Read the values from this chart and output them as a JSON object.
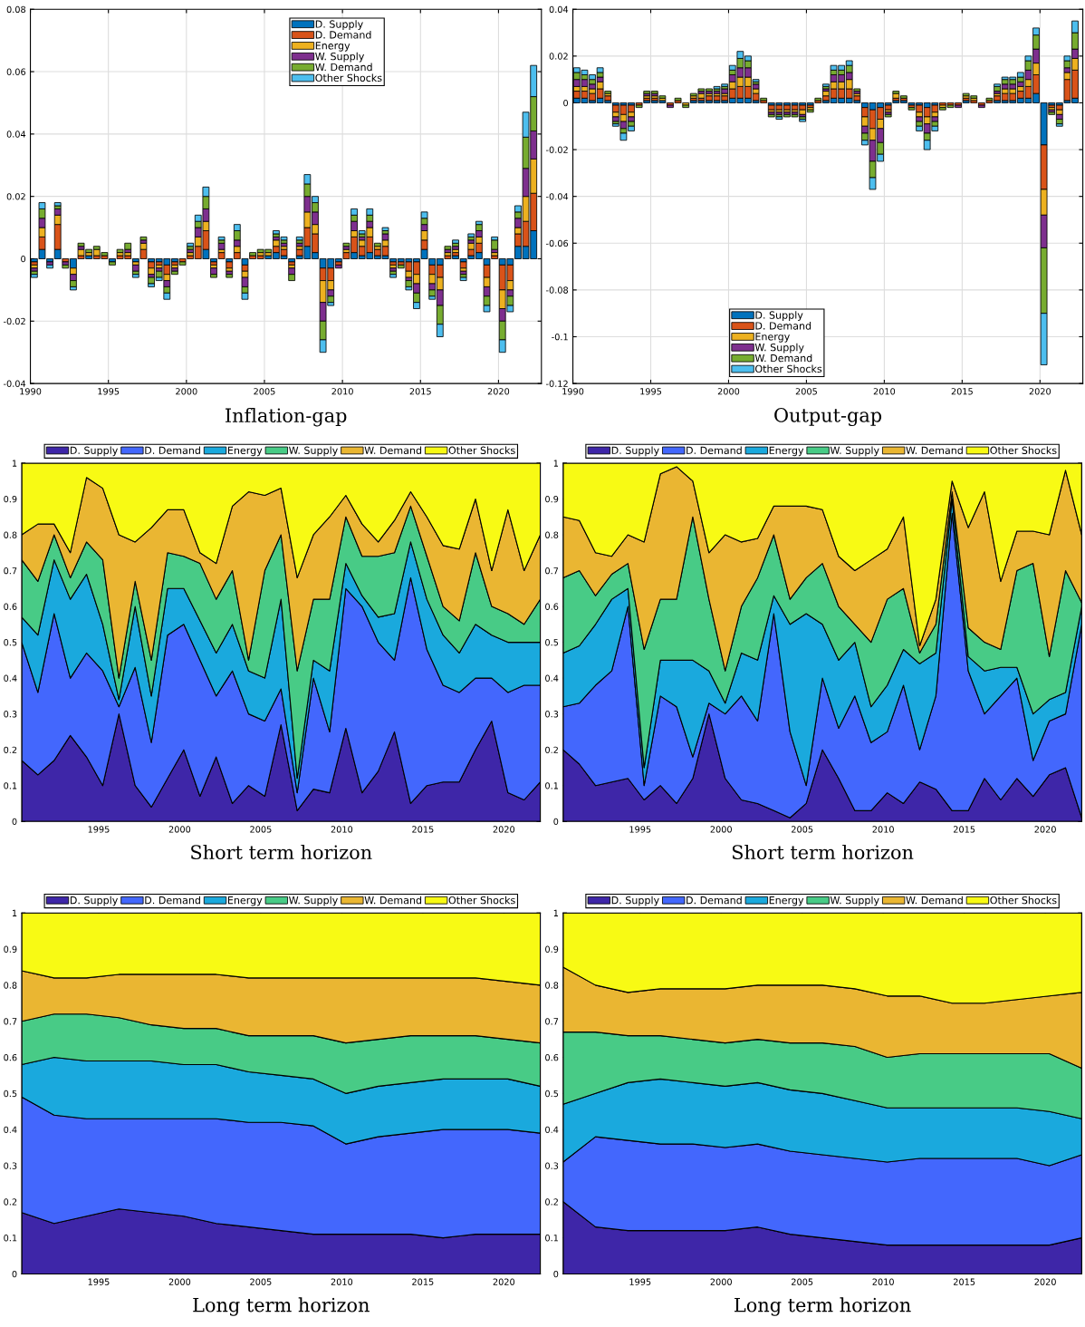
{
  "chart_data": [
    {
      "type": "bar",
      "stacked": true,
      "title": "Inflation-gap",
      "grid": true,
      "legend": "top",
      "x": [
        1990.25,
        1990.75,
        1991.25,
        1991.75,
        1992.25,
        1992.75,
        1993.25,
        1993.75,
        1994.25,
        1994.75,
        1995.25,
        1995.75,
        1996.25,
        1996.75,
        1997.25,
        1997.75,
        1998.25,
        1998.75,
        1999.25,
        1999.75,
        2000.25,
        2000.75,
        2001.25,
        2001.75,
        2002.25,
        2002.75,
        2003.25,
        2003.75,
        2004.25,
        2004.75,
        2005.25,
        2005.75,
        2006.25,
        2006.75,
        2007.25,
        2007.75,
        2008.25,
        2008.75,
        2009.25,
        2009.75,
        2010.25,
        2010.75,
        2011.25,
        2011.75,
        2012.25,
        2012.75,
        2013.25,
        2013.75,
        2014.25,
        2014.75,
        2015.25,
        2015.75,
        2016.25,
        2016.75,
        2017.25,
        2017.75,
        2018.25,
        2018.75,
        2019.25,
        2019.75,
        2020.25,
        2020.75,
        2021.25,
        2021.75,
        2022.25
      ],
      "xlim": [
        1990,
        2022.75
      ],
      "xticks": [
        1990,
        1995,
        2000,
        2005,
        2010,
        2015,
        2020
      ],
      "ylim": [
        -0.04,
        0.08
      ],
      "yticks": [
        -0.04,
        -0.02,
        0,
        0.02,
        0.04,
        0.06,
        0.08
      ],
      "series": [
        {
          "name": "D. Supply",
          "color": "#0072bd",
          "values": [
            -0.001,
            0.003,
            -0.001,
            0.003,
            0,
            -0.003,
            0,
            0.001,
            0,
            0,
            -0.001,
            0,
            0,
            -0.001,
            0,
            -0.001,
            -0.001,
            -0.002,
            -0.001,
            0,
            0,
            0,
            0.003,
            -0.001,
            0,
            -0.001,
            0,
            -0.002,
            0,
            0,
            0.001,
            0.002,
            0.001,
            -0.001,
            0.001,
            0.004,
            0.002,
            -0.003,
            -0.003,
            -0.001,
            0,
            0.002,
            0.001,
            0.002,
            0.001,
            0.001,
            -0.001,
            -0.001,
            -0.001,
            -0.001,
            0.003,
            -0.002,
            -0.002,
            0,
            0.001,
            -0.001,
            0.001,
            0.002,
            -0.002,
            0,
            -0.002,
            -0.002,
            0.004,
            0.004,
            0.009
          ]
        },
        {
          "name": "D. Demand",
          "color": "#d95319",
          "values": [
            -0.001,
            0.004,
            0,
            0.008,
            -0.001,
            0,
            0.001,
            0,
            0.001,
            0.001,
            0,
            0.001,
            0.001,
            0,
            0.003,
            -0.002,
            -0.001,
            -0.003,
            -0.001,
            -0.001,
            0.001,
            0.004,
            0.006,
            -0.001,
            0.002,
            -0.002,
            0.002,
            -0.002,
            0.001,
            0.001,
            0,
            0.002,
            0.002,
            -0.001,
            0.002,
            0.006,
            0.006,
            -0.004,
            -0.004,
            -0.001,
            0.002,
            0.005,
            0.003,
            0.005,
            0.002,
            0.003,
            -0.001,
            -0.001,
            -0.003,
            -0.004,
            0.003,
            -0.003,
            -0.004,
            0.001,
            0.001,
            -0.002,
            0.002,
            0.003,
            -0.004,
            0.001,
            -0.008,
            -0.005,
            0.004,
            0.008,
            0.012
          ]
        },
        {
          "name": "Energy",
          "color": "#edb120",
          "values": [
            -0.001,
            0.003,
            0,
            0.003,
            0,
            -0.002,
            0.002,
            0.001,
            0.002,
            0,
            0,
            0.001,
            0.001,
            -0.001,
            0.002,
            -0.002,
            -0.001,
            -0.002,
            -0.001,
            0,
            0.001,
            0.003,
            0.003,
            -0.001,
            0.001,
            -0.001,
            0.002,
            -0.002,
            0,
            0.001,
            0.001,
            0.002,
            0.001,
            -0.001,
            0.001,
            0.005,
            0.003,
            -0.007,
            -0.003,
            0,
            0.001,
            0.002,
            0.002,
            0.003,
            0.001,
            0.002,
            -0.001,
            0,
            -0.002,
            -0.003,
            0.003,
            -0.003,
            -0.004,
            0.001,
            0.001,
            -0.001,
            0.002,
            0.002,
            -0.003,
            0.001,
            -0.006,
            -0.003,
            0.002,
            0.008,
            0.011
          ]
        },
        {
          "name": "W. Supply",
          "color": "#7e2f8e",
          "values": [
            -0.001,
            0.003,
            -0.001,
            0.002,
            -0.001,
            -0.002,
            0.001,
            0,
            0,
            0,
            0,
            0,
            0.001,
            -0.002,
            0.001,
            -0.001,
            -0.001,
            -0.002,
            -0.001,
            0,
            0.001,
            0.003,
            0.004,
            -0.002,
            0.002,
            -0.001,
            0.002,
            -0.003,
            0,
            0,
            0,
            0.001,
            0.001,
            -0.002,
            0.001,
            0.005,
            0.004,
            -0.006,
            -0.002,
            -0.001,
            0.001,
            0.003,
            0.001,
            0.002,
            0,
            0.002,
            -0.001,
            0,
            -0.001,
            -0.003,
            0.002,
            -0.002,
            -0.005,
            0.001,
            0.001,
            -0.001,
            0.001,
            0.002,
            -0.003,
            0.001,
            -0.004,
            -0.002,
            0.003,
            0.009,
            0.009
          ]
        },
        {
          "name": "W. Demand",
          "color": "#77ac30",
          "values": [
            -0.001,
            0.003,
            0,
            0.001,
            -0.001,
            -0.002,
            0.001,
            0.001,
            0.001,
            0.001,
            -0.001,
            0.001,
            0.002,
            -0.001,
            0.001,
            -0.002,
            -0.002,
            -0.002,
            -0.001,
            -0.001,
            0.001,
            0.002,
            0.004,
            -0.001,
            0.001,
            -0.001,
            0.003,
            -0.002,
            0.001,
            0.001,
            0.001,
            0.001,
            0.001,
            -0.002,
            0.001,
            0.004,
            0.003,
            -0.006,
            -0.002,
            0,
            0.001,
            0.002,
            0.001,
            0.002,
            0.001,
            0.001,
            -0.001,
            -0.001,
            -0.002,
            -0.003,
            0.002,
            -0.002,
            -0.006,
            0.001,
            0.001,
            -0.001,
            0.001,
            0.002,
            -0.003,
            0.003,
            -0.006,
            -0.003,
            0.002,
            0.01,
            0.011
          ]
        },
        {
          "name": "Other Shocks",
          "color": "#4dbeee",
          "values": [
            -0.001,
            0.002,
            -0.001,
            0.001,
            0,
            -0.001,
            0,
            0,
            0,
            0,
            0,
            0,
            0,
            -0.001,
            0,
            -0.001,
            -0.001,
            -0.002,
            0,
            0,
            0.001,
            0.002,
            0.003,
            0,
            0.001,
            0,
            0.002,
            -0.002,
            0,
            0,
            0,
            0.001,
            0.001,
            0,
            0.001,
            0.003,
            0.002,
            -0.004,
            -0.001,
            0,
            0,
            0.002,
            0.001,
            0.002,
            0,
            0.001,
            -0.001,
            0,
            -0.001,
            -0.002,
            0.002,
            -0.001,
            -0.004,
            0,
            0.001,
            -0.001,
            0.001,
            0.001,
            -0.002,
            0.001,
            -0.004,
            -0.002,
            0.002,
            0.008,
            0.01
          ]
        }
      ]
    },
    {
      "type": "bar",
      "stacked": true,
      "title": "Output-gap",
      "grid": true,
      "legend": "bottom",
      "x": [
        1990.25,
        1990.75,
        1991.25,
        1991.75,
        1992.25,
        1992.75,
        1993.25,
        1993.75,
        1994.25,
        1994.75,
        1995.25,
        1995.75,
        1996.25,
        1996.75,
        1997.25,
        1997.75,
        1998.25,
        1998.75,
        1999.25,
        1999.75,
        2000.25,
        2000.75,
        2001.25,
        2001.75,
        2002.25,
        2002.75,
        2003.25,
        2003.75,
        2004.25,
        2004.75,
        2005.25,
        2005.75,
        2006.25,
        2006.75,
        2007.25,
        2007.75,
        2008.25,
        2008.75,
        2009.25,
        2009.75,
        2010.25,
        2010.75,
        2011.25,
        2011.75,
        2012.25,
        2012.75,
        2013.25,
        2013.75,
        2014.25,
        2014.75,
        2015.25,
        2015.75,
        2016.25,
        2016.75,
        2017.25,
        2017.75,
        2018.25,
        2018.75,
        2019.25,
        2019.75,
        2020.25,
        2020.75,
        2021.25,
        2021.75,
        2022.25
      ],
      "xlim": [
        1990,
        2022.75
      ],
      "xticks": [
        1990,
        1995,
        2000,
        2005,
        2010,
        2015,
        2020
      ],
      "ylim": [
        -0.12,
        0.04
      ],
      "yticks": [
        -0.12,
        -0.1,
        -0.08,
        -0.06,
        -0.04,
        -0.02,
        0,
        0.02,
        0.04
      ],
      "series": [
        {
          "name": "D. Supply",
          "color": "#0072bd",
          "values": [
            0.002,
            0.002,
            0.001,
            0.002,
            0.001,
            -0.001,
            -0.001,
            -0.001,
            0,
            0.001,
            0.001,
            0.001,
            0,
            0,
            0,
            0.001,
            0.001,
            0.001,
            0.001,
            0.001,
            0.002,
            0.002,
            0.002,
            0.001,
            0,
            -0.001,
            -0.001,
            -0.001,
            -0.001,
            -0.001,
            -0.001,
            0,
            0.001,
            0.002,
            0.002,
            0.002,
            0.001,
            -0.002,
            -0.003,
            -0.002,
            -0.001,
            0.001,
            0.001,
            -0.001,
            -0.001,
            -0.002,
            -0.001,
            0,
            0,
            0,
            0.001,
            0,
            0,
            0,
            0.001,
            0.001,
            0.001,
            0.002,
            0.002,
            0.004,
            -0.018,
            -0.001,
            -0.001,
            0.001,
            0.002
          ]
        },
        {
          "name": "D. Demand",
          "color": "#d95319",
          "values": [
            0.003,
            0.003,
            0.003,
            0.004,
            0.002,
            -0.003,
            -0.004,
            -0.003,
            -0.001,
            0.001,
            0.001,
            0,
            -0.001,
            0.001,
            0,
            0.001,
            0.001,
            0.002,
            0.002,
            0.002,
            0.004,
            0.005,
            0.005,
            0.003,
            0.001,
            -0.002,
            -0.002,
            -0.002,
            -0.002,
            -0.002,
            -0.001,
            0.001,
            0.002,
            0.004,
            0.004,
            0.004,
            0.002,
            -0.004,
            -0.008,
            -0.005,
            -0.002,
            0.001,
            0.001,
            -0.001,
            -0.003,
            -0.004,
            -0.003,
            -0.001,
            -0.001,
            -0.001,
            0.001,
            0.001,
            -0.001,
            0.001,
            0.002,
            0.003,
            0.003,
            0.003,
            0.005,
            0.008,
            -0.019,
            -0.001,
            -0.002,
            0.009,
            0.012
          ]
        },
        {
          "name": "Energy",
          "color": "#edb120",
          "values": [
            0.002,
            0.002,
            0.002,
            0.003,
            0.001,
            -0.002,
            -0.003,
            -0.002,
            0,
            0.001,
            0.001,
            0.001,
            0,
            0,
            -0.001,
            0.001,
            0.002,
            0.001,
            0.001,
            0.001,
            0.003,
            0.004,
            0.004,
            0.002,
            0,
            -0.001,
            -0.001,
            -0.001,
            -0.001,
            -0.002,
            -0.001,
            0,
            0.002,
            0.003,
            0.003,
            0.004,
            0.001,
            -0.004,
            -0.005,
            -0.004,
            -0.001,
            0.002,
            0,
            0,
            -0.002,
            -0.003,
            -0.002,
            -0.001,
            0,
            0,
            0.001,
            0.001,
            0,
            0,
            0.001,
            0.002,
            0.002,
            0.002,
            0.003,
            0.005,
            -0.011,
            -0.001,
            -0.002,
            0.003,
            0.005
          ]
        },
        {
          "name": "W. Supply",
          "color": "#7e2f8e",
          "values": [
            0.003,
            0.003,
            0.002,
            0.002,
            0,
            -0.002,
            -0.003,
            -0.002,
            0,
            0.001,
            0.001,
            0,
            -0.001,
            0,
            0,
            0,
            0.001,
            0.001,
            0.001,
            0.002,
            0.003,
            0.004,
            0.004,
            0.002,
            0,
            -0.001,
            -0.001,
            -0.001,
            -0.001,
            -0.001,
            0,
            0,
            0.001,
            0.003,
            0.003,
            0.003,
            0.001,
            -0.003,
            -0.009,
            -0.006,
            -0.001,
            0,
            0,
            0,
            -0.002,
            -0.004,
            -0.002,
            0,
            0,
            -0.001,
            0,
            0,
            -0.001,
            0,
            0.001,
            0.002,
            0.002,
            0.002,
            0.004,
            0.006,
            -0.014,
            -0.001,
            -0.002,
            0.002,
            0.004
          ]
        },
        {
          "name": "W. Demand",
          "color": "#77ac30",
          "values": [
            0.003,
            0.002,
            0.002,
            0.002,
            0.001,
            -0.001,
            -0.002,
            -0.002,
            -0.001,
            0.001,
            0.001,
            0.001,
            0,
            0.001,
            -0.001,
            0.001,
            0.001,
            0.001,
            0.001,
            0.001,
            0.002,
            0.004,
            0.003,
            0.001,
            0.001,
            -0.001,
            -0.001,
            -0.001,
            -0.001,
            -0.001,
            -0.001,
            0.001,
            0.001,
            0.002,
            0.002,
            0.003,
            0.001,
            -0.003,
            -0.007,
            -0.005,
            -0.001,
            0.001,
            0.001,
            -0.001,
            -0.002,
            -0.003,
            -0.002,
            -0.001,
            -0.001,
            0,
            0.001,
            0.001,
            0,
            0.001,
            0.002,
            0.002,
            0.002,
            0.002,
            0.004,
            0.006,
            -0.028,
            -0.001,
            -0.002,
            0.003,
            0.007
          ]
        },
        {
          "name": "Other Shocks",
          "color": "#4dbeee",
          "values": [
            0.002,
            0.002,
            0.002,
            0.002,
            0,
            -0.001,
            -0.003,
            -0.002,
            0,
            0,
            0,
            0,
            0,
            0,
            0,
            0,
            0,
            0,
            0.001,
            0.001,
            0.002,
            0.003,
            0.002,
            0.001,
            0,
            0,
            -0.001,
            0,
            0,
            -0.001,
            0,
            0,
            0.001,
            0.002,
            0.002,
            0.002,
            0,
            -0.002,
            -0.005,
            -0.003,
            0,
            0,
            0,
            0,
            -0.002,
            -0.004,
            -0.002,
            0,
            0,
            0,
            0,
            0,
            0,
            0,
            0.001,
            0.001,
            0.001,
            0.002,
            0.002,
            0.003,
            -0.022,
            0,
            -0.001,
            0.002,
            0.005
          ]
        }
      ]
    },
    {
      "type": "area",
      "stacked": true,
      "title": "Short term horizon",
      "legend": "top",
      "x": [
        1990.25,
        1991.25,
        1992.25,
        1993.25,
        1994.25,
        1995.25,
        1996.25,
        1997.25,
        1998.25,
        1999.25,
        2000.25,
        2001.25,
        2002.25,
        2003.25,
        2004.25,
        2005.25,
        2006.25,
        2007.25,
        2008.25,
        2009.25,
        2010.25,
        2011.25,
        2012.25,
        2013.25,
        2014.25,
        2015.25,
        2016.25,
        2017.25,
        2018.25,
        2019.25,
        2020.25,
        2021.25,
        2022.25
      ],
      "xlim": [
        1990.25,
        2022.25
      ],
      "xticks": [
        1995,
        2000,
        2005,
        2010,
        2015,
        2020
      ],
      "ylim": [
        0,
        1
      ],
      "yticks": [
        0,
        0.1,
        0.2,
        0.3,
        0.4,
        0.5,
        0.6,
        0.7,
        0.8,
        0.9,
        1
      ],
      "series": [
        {
          "name": "D. Supply",
          "color": "#3e26a8",
          "values": [
            0.17,
            0.13,
            0.17,
            0.24,
            0.18,
            0.1,
            0.3,
            0.1,
            0.04,
            0.12,
            0.2,
            0.07,
            0.18,
            0.05,
            0.1,
            0.07,
            0.27,
            0.03,
            0.09,
            0.08,
            0.26,
            0.08,
            0.14,
            0.25,
            0.05,
            0.1,
            0.11,
            0.11,
            0.2,
            0.28,
            0.08,
            0.06,
            0.11
          ]
        },
        {
          "name": "D. Demand",
          "color": "#4367fd",
          "values": [
            0.33,
            0.23,
            0.41,
            0.16,
            0.29,
            0.32,
            0.02,
            0.33,
            0.18,
            0.4,
            0.35,
            0.38,
            0.17,
            0.37,
            0.2,
            0.21,
            0.1,
            0.05,
            0.31,
            0.17,
            0.39,
            0.52,
            0.36,
            0.2,
            0.63,
            0.38,
            0.27,
            0.25,
            0.2,
            0.12,
            0.28,
            0.32,
            0.27
          ]
        },
        {
          "name": "Energy",
          "color": "#1aa9dd",
          "values": [
            0.07,
            0.16,
            0.15,
            0.22,
            0.22,
            0.13,
            0.02,
            0.17,
            0.13,
            0.13,
            0.1,
            0.11,
            0.12,
            0.13,
            0.12,
            0.12,
            0.25,
            0.04,
            0.05,
            0.17,
            0.07,
            0.03,
            0.07,
            0.13,
            0.1,
            0.14,
            0.14,
            0.11,
            0.15,
            0.12,
            0.14,
            0.12,
            0.12
          ]
        },
        {
          "name": "W. Supply",
          "color": "#48cb86",
          "values": [
            0.16,
            0.15,
            0.07,
            0.06,
            0.09,
            0.18,
            0.06,
            0.07,
            0.1,
            0.1,
            0.09,
            0.16,
            0.15,
            0.15,
            0.03,
            0.3,
            0.18,
            0.3,
            0.17,
            0.2,
            0.13,
            0.11,
            0.17,
            0.17,
            0.1,
            0.12,
            0.08,
            0.09,
            0.2,
            0.08,
            0.08,
            0.05,
            0.12
          ]
        },
        {
          "name": "W. Demand",
          "color": "#eab632",
          "values": [
            0.07,
            0.16,
            0.03,
            0.07,
            0.18,
            0.2,
            0.4,
            0.11,
            0.37,
            0.12,
            0.13,
            0.03,
            0.1,
            0.18,
            0.47,
            0.21,
            0.13,
            0.26,
            0.18,
            0.23,
            0.06,
            0.09,
            0.04,
            0.09,
            0.04,
            0.11,
            0.17,
            0.2,
            0.15,
            0.1,
            0.29,
            0.15,
            0.18
          ]
        },
        {
          "name": "Other Shocks",
          "color": "#f8fa14",
          "values": [
            0.2,
            0.17,
            0.17,
            0.25,
            0.04,
            0.07,
            0.2,
            0.22,
            0.18,
            0.13,
            0.13,
            0.25,
            0.28,
            0.12,
            0.08,
            0.09,
            0.07,
            0.32,
            0.2,
            0.15,
            0.09,
            0.17,
            0.22,
            0.16,
            0.08,
            0.15,
            0.23,
            0.24,
            0.1,
            0.3,
            0.13,
            0.3,
            0.2
          ]
        }
      ]
    },
    {
      "type": "area",
      "stacked": true,
      "title": "Short term horizon",
      "legend": "top",
      "x": [
        1990.25,
        1991.25,
        1992.25,
        1993.25,
        1994.25,
        1995.25,
        1996.25,
        1997.25,
        1998.25,
        1999.25,
        2000.25,
        2001.25,
        2002.25,
        2003.25,
        2004.25,
        2005.25,
        2006.25,
        2007.25,
        2008.25,
        2009.25,
        2010.25,
        2011.25,
        2012.25,
        2013.25,
        2014.25,
        2015.25,
        2016.25,
        2017.25,
        2018.25,
        2019.25,
        2020.25,
        2021.25,
        2022.25
      ],
      "xlim": [
        1990.25,
        2022.25
      ],
      "xticks": [
        1995,
        2000,
        2005,
        2010,
        2015,
        2020
      ],
      "ylim": [
        0,
        1
      ],
      "yticks": [
        0,
        0.1,
        0.2,
        0.3,
        0.4,
        0.5,
        0.6,
        0.7,
        0.8,
        0.9,
        1
      ],
      "series": [
        {
          "name": "D. Supply",
          "color": "#3e26a8",
          "values": [
            0.2,
            0.16,
            0.1,
            0.11,
            0.12,
            0.06,
            0.1,
            0.05,
            0.12,
            0.3,
            0.12,
            0.06,
            0.05,
            0.03,
            0.01,
            0.05,
            0.2,
            0.12,
            0.03,
            0.03,
            0.08,
            0.05,
            0.11,
            0.09,
            0.03,
            0.03,
            0.12,
            0.06,
            0.12,
            0.07,
            0.13,
            0.15,
            0.01
          ]
        },
        {
          "name": "D. Demand",
          "color": "#4367fd",
          "values": [
            0.12,
            0.17,
            0.28,
            0.31,
            0.48,
            0.04,
            0.25,
            0.27,
            0.06,
            0.03,
            0.18,
            0.29,
            0.23,
            0.55,
            0.24,
            0.05,
            0.2,
            0.14,
            0.32,
            0.19,
            0.17,
            0.33,
            0.09,
            0.26,
            0.83,
            0.39,
            0.18,
            0.29,
            0.28,
            0.1,
            0.15,
            0.15,
            0.54
          ]
        },
        {
          "name": "Energy",
          "color": "#1aa9dd",
          "values": [
            0.15,
            0.16,
            0.17,
            0.2,
            0.05,
            0.05,
            0.1,
            0.13,
            0.27,
            0.09,
            0.03,
            0.12,
            0.17,
            0.05,
            0.3,
            0.48,
            0.15,
            0.19,
            0.15,
            0.1,
            0.13,
            0.1,
            0.24,
            0.12,
            0.04,
            0.04,
            0.12,
            0.08,
            0.03,
            0.13,
            0.06,
            0.06,
            0.05
          ]
        },
        {
          "name": "W. Supply",
          "color": "#48cb86",
          "values": [
            0.21,
            0.21,
            0.08,
            0.07,
            0.07,
            0.33,
            0.17,
            0.17,
            0.4,
            0.2,
            0.09,
            0.13,
            0.23,
            0.17,
            0.07,
            0.1,
            0.17,
            0.15,
            0.05,
            0.18,
            0.24,
            0.17,
            0.03,
            0.08,
            0.02,
            0.08,
            0.08,
            0.05,
            0.27,
            0.42,
            0.12,
            0.34,
            0.01
          ]
        },
        {
          "name": "W. Demand",
          "color": "#eab632",
          "values": [
            0.17,
            0.14,
            0.12,
            0.05,
            0.08,
            0.3,
            0.35,
            0.37,
            0.1,
            0.13,
            0.38,
            0.18,
            0.11,
            0.08,
            0.26,
            0.2,
            0.15,
            0.14,
            0.15,
            0.23,
            0.14,
            0.2,
            0.02,
            0.07,
            0.03,
            0.28,
            0.42,
            0.19,
            0.11,
            0.09,
            0.34,
            0.28,
            0.19
          ]
        },
        {
          "name": "Other Shocks",
          "color": "#f8fa14",
          "values": [
            0.15,
            0.16,
            0.25,
            0.26,
            0.2,
            0.22,
            0.03,
            0.01,
            0.05,
            0.25,
            0.2,
            0.22,
            0.21,
            0.12,
            0.12,
            0.12,
            0.13,
            0.26,
            0.3,
            0.27,
            0.24,
            0.15,
            0.51,
            0.38,
            0.05,
            0.18,
            0.08,
            0.33,
            0.19,
            0.19,
            0.2,
            0.02,
            0.2
          ]
        }
      ]
    },
    {
      "type": "area",
      "stacked": true,
      "title": "Long term horizon",
      "legend": "top",
      "x": [
        1990.25,
        1992.25,
        1994.25,
        1996.25,
        1998.25,
        2000.25,
        2002.25,
        2004.25,
        2006.25,
        2008.25,
        2010.25,
        2012.25,
        2014.25,
        2016.25,
        2018.25,
        2020.25,
        2022.25
      ],
      "xlim": [
        1990.25,
        2022.25
      ],
      "xticks": [
        1995,
        2000,
        2005,
        2010,
        2015,
        2020
      ],
      "ylim": [
        0,
        1
      ],
      "yticks": [
        0,
        0.1,
        0.2,
        0.3,
        0.4,
        0.5,
        0.6,
        0.7,
        0.8,
        0.9,
        1
      ],
      "series": [
        {
          "name": "D. Supply",
          "color": "#3e26a8",
          "values": [
            0.17,
            0.14,
            0.16,
            0.18,
            0.17,
            0.16,
            0.14,
            0.13,
            0.12,
            0.11,
            0.11,
            0.11,
            0.11,
            0.1,
            0.11,
            0.11,
            0.11
          ]
        },
        {
          "name": "D. Demand",
          "color": "#4367fd",
          "values": [
            0.32,
            0.3,
            0.27,
            0.25,
            0.26,
            0.27,
            0.29,
            0.29,
            0.3,
            0.3,
            0.25,
            0.27,
            0.28,
            0.3,
            0.29,
            0.29,
            0.28
          ]
        },
        {
          "name": "Energy",
          "color": "#1aa9dd",
          "values": [
            0.09,
            0.16,
            0.16,
            0.16,
            0.16,
            0.15,
            0.15,
            0.14,
            0.13,
            0.13,
            0.14,
            0.14,
            0.14,
            0.14,
            0.14,
            0.14,
            0.13
          ]
        },
        {
          "name": "W. Supply",
          "color": "#48cb86",
          "values": [
            0.12,
            0.12,
            0.13,
            0.12,
            0.1,
            0.1,
            0.1,
            0.1,
            0.11,
            0.12,
            0.14,
            0.13,
            0.13,
            0.12,
            0.12,
            0.11,
            0.12
          ]
        },
        {
          "name": "W. Demand",
          "color": "#eab632",
          "values": [
            0.14,
            0.1,
            0.1,
            0.12,
            0.14,
            0.15,
            0.15,
            0.16,
            0.16,
            0.16,
            0.18,
            0.17,
            0.16,
            0.16,
            0.16,
            0.16,
            0.16
          ]
        },
        {
          "name": "Other Shocks",
          "color": "#f8fa14",
          "values": [
            0.16,
            0.18,
            0.18,
            0.17,
            0.17,
            0.17,
            0.17,
            0.18,
            0.18,
            0.18,
            0.18,
            0.18,
            0.18,
            0.18,
            0.18,
            0.19,
            0.2
          ]
        }
      ]
    },
    {
      "type": "area",
      "stacked": true,
      "title": "Long term horizon",
      "legend": "top",
      "x": [
        1990.25,
        1992.25,
        1994.25,
        1996.25,
        1998.25,
        2000.25,
        2002.25,
        2004.25,
        2006.25,
        2008.25,
        2010.25,
        2012.25,
        2014.25,
        2016.25,
        2018.25,
        2020.25,
        2022.25
      ],
      "xlim": [
        1990.25,
        2022.25
      ],
      "xticks": [
        1995,
        2000,
        2005,
        2010,
        2015,
        2020
      ],
      "ylim": [
        0,
        1
      ],
      "yticks": [
        0,
        0.1,
        0.2,
        0.3,
        0.4,
        0.5,
        0.6,
        0.7,
        0.8,
        0.9,
        1
      ],
      "series": [
        {
          "name": "D. Supply",
          "color": "#3e26a8",
          "values": [
            0.2,
            0.13,
            0.12,
            0.12,
            0.12,
            0.12,
            0.13,
            0.11,
            0.1,
            0.09,
            0.08,
            0.08,
            0.08,
            0.08,
            0.08,
            0.08,
            0.1
          ]
        },
        {
          "name": "D. Demand",
          "color": "#4367fd",
          "values": [
            0.11,
            0.25,
            0.25,
            0.24,
            0.24,
            0.23,
            0.23,
            0.23,
            0.23,
            0.23,
            0.23,
            0.24,
            0.24,
            0.24,
            0.24,
            0.22,
            0.23
          ]
        },
        {
          "name": "Energy",
          "color": "#1aa9dd",
          "values": [
            0.16,
            0.12,
            0.16,
            0.18,
            0.17,
            0.17,
            0.17,
            0.17,
            0.17,
            0.16,
            0.15,
            0.14,
            0.14,
            0.14,
            0.14,
            0.15,
            0.1
          ]
        },
        {
          "name": "W. Supply",
          "color": "#48cb86",
          "values": [
            0.2,
            0.17,
            0.13,
            0.12,
            0.12,
            0.12,
            0.12,
            0.13,
            0.14,
            0.15,
            0.14,
            0.15,
            0.15,
            0.15,
            0.15,
            0.16,
            0.14
          ]
        },
        {
          "name": "W. Demand",
          "color": "#eab632",
          "values": [
            0.18,
            0.13,
            0.12,
            0.13,
            0.14,
            0.15,
            0.15,
            0.16,
            0.16,
            0.16,
            0.17,
            0.16,
            0.14,
            0.14,
            0.15,
            0.16,
            0.21
          ]
        },
        {
          "name": "Other Shocks",
          "color": "#f8fa14",
          "values": [
            0.15,
            0.2,
            0.22,
            0.21,
            0.21,
            0.21,
            0.2,
            0.2,
            0.2,
            0.21,
            0.23,
            0.23,
            0.25,
            0.25,
            0.24,
            0.23,
            0.22
          ]
        }
      ]
    }
  ]
}
